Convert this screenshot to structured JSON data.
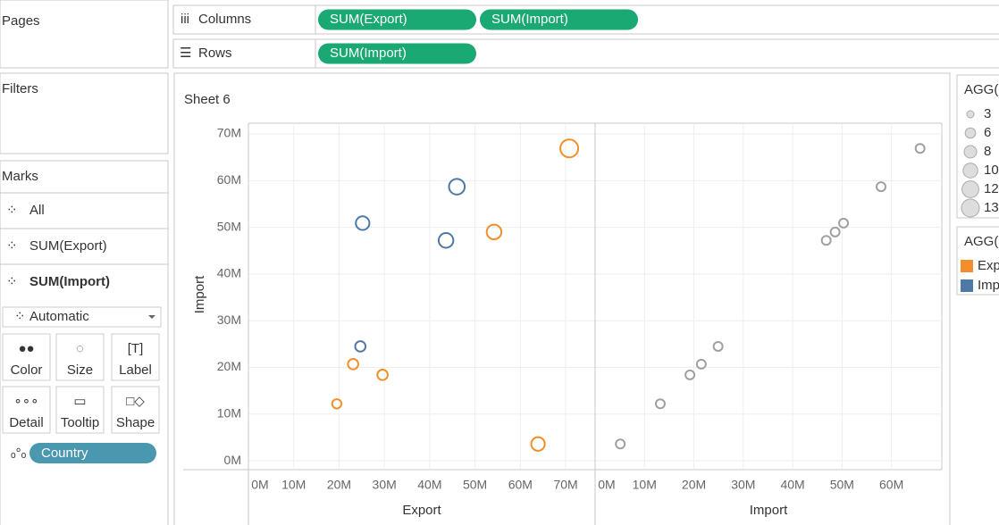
{
  "side_panels": {
    "pages": "Pages",
    "filters": "Filters",
    "marks": {
      "title": "Marks",
      "cards": [
        "All",
        "SUM(Export)",
        "SUM(Import)"
      ],
      "mark_type": "Automatic",
      "buttons": [
        "Color",
        "Size",
        "Label",
        "Detail",
        "Tooltip",
        "Shape"
      ],
      "detail_pill": "Country"
    }
  },
  "shelves": {
    "columns": {
      "label": "Columns",
      "pills": [
        "SUM(Export)",
        "SUM(Import)"
      ]
    },
    "rows": {
      "label": "Rows",
      "pills": [
        "SUM(Import)"
      ]
    }
  },
  "chart_data": [
    {
      "type": "scatter",
      "title": "Sheet 6",
      "x_label": "Export",
      "y_label": "Import",
      "xlim": [
        0,
        76.5
      ],
      "ylim": [
        -1.9,
        72.3
      ],
      "xticks": [
        {
          "value": 0,
          "label": "0M"
        },
        {
          "value": 10,
          "label": "10M"
        },
        {
          "value": 20,
          "label": "20M"
        },
        {
          "value": 30,
          "label": "30M"
        },
        {
          "value": 40,
          "label": "40M"
        },
        {
          "value": 50,
          "label": "50M"
        },
        {
          "value": 60,
          "label": "60M"
        },
        {
          "value": 70,
          "label": "70M"
        }
      ],
      "yticks": [
        {
          "value": 0,
          "label": "0M"
        },
        {
          "value": 10,
          "label": "10M"
        },
        {
          "value": 20,
          "label": "20M"
        },
        {
          "value": 30,
          "label": "30M"
        },
        {
          "value": 40,
          "label": "40M"
        },
        {
          "value": 50,
          "label": "50M"
        },
        {
          "value": 60,
          "label": "60M"
        },
        {
          "value": 70,
          "label": "70M"
        }
      ],
      "grid": true,
      "series": [
        {
          "name": "Exp",
          "color": "#f28e2b",
          "x": [
            70.8,
            54.2,
            23.1,
            29.6,
            19.5,
            63.9
          ],
          "values": [
            66.9,
            49.0,
            20.7,
            18.4,
            12.2,
            3.6
          ],
          "sizes": [
            13,
            10,
            6,
            6,
            5,
            9
          ]
        },
        {
          "name": "Imp",
          "color": "#4e79a7",
          "x": [
            46.0,
            25.2,
            43.6,
            24.7
          ],
          "values": [
            58.7,
            50.9,
            47.2,
            24.5
          ],
          "sizes": [
            11,
            9,
            10,
            6
          ]
        }
      ]
    },
    {
      "type": "scatter",
      "x_label": "Import",
      "xlim": [
        0,
        70.2
      ],
      "ylim": [
        -1.9,
        72.3
      ],
      "xticks": [
        {
          "value": 0,
          "label": "0M"
        },
        {
          "value": 10,
          "label": "10M"
        },
        {
          "value": 20,
          "label": "20M"
        },
        {
          "value": 30,
          "label": "30M"
        },
        {
          "value": 40,
          "label": "40M"
        },
        {
          "value": 50,
          "label": "50M"
        },
        {
          "value": 60,
          "label": "60M"
        }
      ],
      "grid": true,
      "series": [
        {
          "color": "#a0a0a0",
          "x": [
            5.1,
            13.2,
            19.2,
            21.5,
            24.9,
            46.8,
            48.6,
            50.3,
            57.9,
            65.8
          ],
          "values": [
            3.6,
            12.2,
            18.4,
            20.7,
            24.5,
            47.2,
            49.0,
            50.9,
            58.7,
            66.9
          ]
        }
      ]
    }
  ],
  "size_legend": {
    "title": "AGG(",
    "values": [
      3,
      6,
      8,
      10,
      12,
      13
    ]
  },
  "color_legend": {
    "title": "AGG("
  }
}
